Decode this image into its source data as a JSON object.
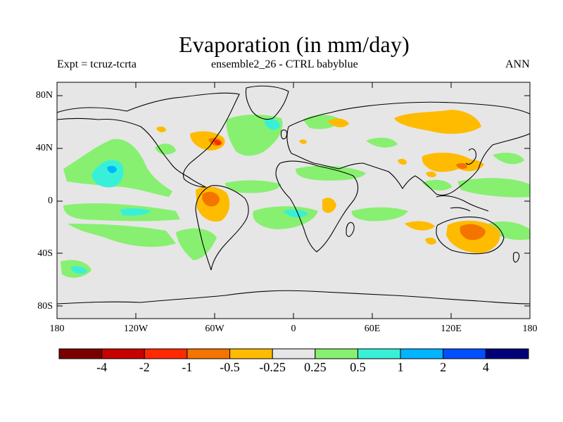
{
  "title": "Evaporation (in mm/day)",
  "subtitle_left": "Expt = tcruz-tcrta",
  "subtitle_center": "ensemble2_26 - CTRL babyblue",
  "subtitle_right": "ANN",
  "lat_ticks": [
    "80N",
    "40N",
    "0",
    "40S",
    "80S"
  ],
  "lon_ticks": [
    "180",
    "120W",
    "60W",
    "0",
    "60E",
    "120E",
    "180"
  ],
  "colorbar": {
    "colors": [
      "#7a0000",
      "#c80000",
      "#ff2a00",
      "#f47400",
      "#ffbb00",
      "#e6e6e6",
      "#88f070",
      "#38f0d8",
      "#00b4ff",
      "#0050ff",
      "#000078"
    ],
    "labels": [
      "-4",
      "-2",
      "-1",
      "-0.5",
      "-0.25",
      "0.25",
      "0.5",
      "1",
      "2",
      "4"
    ]
  },
  "colors": {
    "background": "#e6e6e6",
    "land_outline": "#000000"
  }
}
